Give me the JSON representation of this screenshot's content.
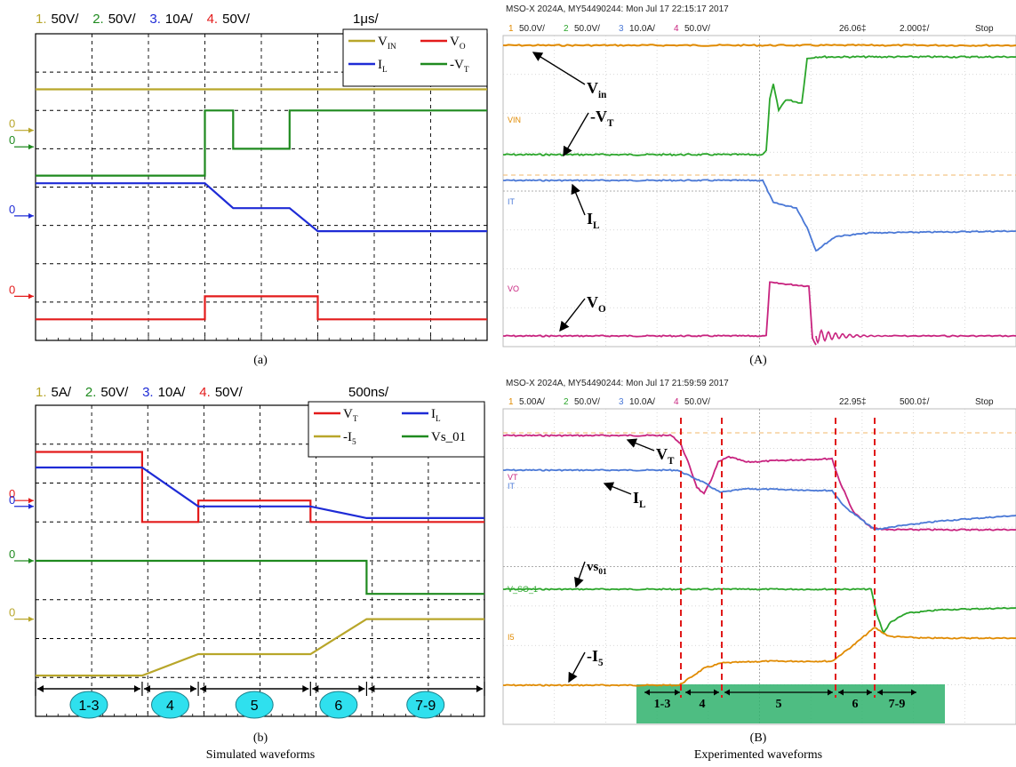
{
  "figure": {
    "caption_left": "Simulated waveforms",
    "caption_right": "Experimented waveforms",
    "panels": [
      {
        "id": "a",
        "label": "(a)",
        "type": "simulated",
        "channel_scales": [
          {
            "num": "1.",
            "text": "50V/",
            "color": "#b8a62a"
          },
          {
            "num": "2.",
            "text": "50V/",
            "color": "#1f8a1f"
          },
          {
            "num": "3.",
            "text": "10A/",
            "color": "#1e2bd6"
          },
          {
            "num": "4.",
            "text": "50V/",
            "color": "#e31b1b"
          }
        ],
        "time_scale": "1μs/",
        "legend": [
          {
            "main": "V",
            "sub": "IN",
            "prefix": "",
            "color": "#b8a62a"
          },
          {
            "main": "V",
            "sub": "O",
            "prefix": "",
            "color": "#e31b1b"
          },
          {
            "main": "I",
            "sub": "L",
            "prefix": "",
            "color": "#1e2bd6"
          },
          {
            "main": "V",
            "sub": "T",
            "prefix": "-",
            "color": "#1f8a1f"
          }
        ],
        "zero_markers": [
          {
            "label": "0",
            "color": "#b8a62a",
            "y_div": 2.52
          },
          {
            "label": "0",
            "color": "#1f8a1f",
            "y_div": 2.95
          },
          {
            "label": "0",
            "color": "#1e2bd6",
            "y_div": 4.75
          },
          {
            "label": "0",
            "color": "#e31b1b",
            "y_div": 6.85
          }
        ],
        "divisions": {
          "x": 8,
          "y": 8
        },
        "series": [
          {
            "name": "V_IN",
            "color": "#b8a62a",
            "points": [
              [
                0,
                1.45
              ],
              [
                8,
                1.45
              ]
            ]
          },
          {
            "name": "-V_T",
            "color": "#1f8a1f",
            "points": [
              [
                0,
                3.7
              ],
              [
                3,
                3.7
              ],
              [
                3,
                2.0
              ],
              [
                3.5,
                2.0
              ],
              [
                3.5,
                3.0
              ],
              [
                4.5,
                3.0
              ],
              [
                4.5,
                2.0
              ],
              [
                8,
                2.0
              ]
            ]
          },
          {
            "name": "I_L",
            "color": "#1e2bd6",
            "points": [
              [
                0,
                3.9
              ],
              [
                3,
                3.9
              ],
              [
                3.5,
                4.55
              ],
              [
                4.5,
                4.55
              ],
              [
                5,
                5.15
              ],
              [
                8,
                5.15
              ]
            ]
          },
          {
            "name": "V_O",
            "color": "#e31b1b",
            "points": [
              [
                0,
                7.45
              ],
              [
                3,
                7.45
              ],
              [
                3,
                6.85
              ],
              [
                5,
                6.85
              ],
              [
                5,
                7.45
              ],
              [
                8,
                7.45
              ]
            ]
          }
        ]
      },
      {
        "id": "b",
        "label": "(b)",
        "type": "simulated",
        "channel_scales": [
          {
            "num": "1.",
            "text": "5A/",
            "color": "#b8a62a"
          },
          {
            "num": "2.",
            "text": "50V/",
            "color": "#1f8a1f"
          },
          {
            "num": "3.",
            "text": "10A/",
            "color": "#1e2bd6"
          },
          {
            "num": "4.",
            "text": "50V/",
            "color": "#e31b1b"
          }
        ],
        "time_scale": "500ns/",
        "legend": [
          {
            "main": "V",
            "sub": "T",
            "prefix": "",
            "color": "#e31b1b"
          },
          {
            "main": "I",
            "sub": "L",
            "prefix": "",
            "color": "#1e2bd6"
          },
          {
            "main": "I",
            "sub": "5",
            "prefix": "-",
            "color": "#b8a62a"
          },
          {
            "main": "Vs_01",
            "sub": "",
            "prefix": "",
            "color": "#1f8a1f"
          }
        ],
        "zero_markers": [
          {
            "label": "0",
            "color": "#e31b1b",
            "y_div": 2.45
          },
          {
            "label": "0",
            "color": "#1e2bd6",
            "y_div": 2.6
          },
          {
            "label": "0",
            "color": "#1f8a1f",
            "y_div": 4.0
          },
          {
            "label": "0",
            "color": "#b8a62a",
            "y_div": 5.5
          }
        ],
        "divisions": {
          "x": 8,
          "y": 8
        },
        "series": [
          {
            "name": "V_T",
            "color": "#e31b1b",
            "points": [
              [
                0,
                1.2
              ],
              [
                1.9,
                1.2
              ],
              [
                1.9,
                3.0
              ],
              [
                2.9,
                3.0
              ],
              [
                2.9,
                2.45
              ],
              [
                4.9,
                2.45
              ],
              [
                4.9,
                3.0
              ],
              [
                8,
                3.0
              ]
            ]
          },
          {
            "name": "I_L",
            "color": "#1e2bd6",
            "points": [
              [
                0,
                1.6
              ],
              [
                1.9,
                1.6
              ],
              [
                2.9,
                2.6
              ],
              [
                4.9,
                2.6
              ],
              [
                5.9,
                2.9
              ],
              [
                8,
                2.9
              ]
            ]
          },
          {
            "name": "Vs_01",
            "color": "#1f8a1f",
            "points": [
              [
                0,
                4.0
              ],
              [
                5.9,
                4.0
              ],
              [
                5.9,
                4.85
              ],
              [
                8,
                4.85
              ]
            ]
          },
          {
            "name": "-I5",
            "color": "#b8a62a",
            "points": [
              [
                0,
                6.95
              ],
              [
                1.9,
                6.95
              ],
              [
                2.9,
                6.4
              ],
              [
                4.9,
                6.4
              ],
              [
                5.9,
                5.5
              ],
              [
                8,
                5.5
              ]
            ]
          }
        ],
        "intervals": [
          {
            "label": "1-3",
            "x0": 0,
            "x1": 1.9
          },
          {
            "label": "4",
            "x0": 1.9,
            "x1": 2.9
          },
          {
            "label": "5",
            "x0": 2.9,
            "x1": 4.9
          },
          {
            "label": "6",
            "x0": 4.9,
            "x1": 5.9
          },
          {
            "label": "7-9",
            "x0": 5.9,
            "x1": 8
          }
        ]
      },
      {
        "id": "A",
        "label": "(A)",
        "type": "experimental",
        "header": "MSO-X 2024A, MY54490244: Mon Jul 17 22:15:17 2017",
        "scale_bar": {
          "channels": [
            {
              "num": "1",
              "text": "50.0V/",
              "color": "#e08a00"
            },
            {
              "num": "2",
              "text": "50.0V/",
              "color": "#2aa52a"
            },
            {
              "num": "3",
              "text": "10.0A/",
              "color": "#4a78d6"
            },
            {
              "num": "4",
              "text": "50.0V/",
              "color": "#c8237f"
            }
          ],
          "delay": "26.06‡",
          "timebase": "2.000‡/",
          "state": "Stop"
        },
        "channel_tags": [
          {
            "text": "VIN",
            "color": "#e08a00"
          },
          {
            "text": "IT",
            "color": "#4a78d6"
          },
          {
            "text": "VO",
            "color": "#c8237f"
          }
        ],
        "annotations": [
          {
            "main": "V",
            "sub": "in"
          },
          {
            "main": "-V",
            "sub": "T"
          },
          {
            "main": "I",
            "sub": "L"
          },
          {
            "main": "V",
            "sub": "O"
          }
        ]
      },
      {
        "id": "B",
        "label": "(B)",
        "type": "experimental",
        "header": "MSO-X 2024A, MY54490244: Mon Jul 17 21:59:59 2017",
        "scale_bar": {
          "channels": [
            {
              "num": "1",
              "text": "5.00A/",
              "color": "#e08a00"
            },
            {
              "num": "2",
              "text": "50.0V/",
              "color": "#2aa52a"
            },
            {
              "num": "3",
              "text": "10.0A/",
              "color": "#4a78d6"
            },
            {
              "num": "4",
              "text": "50.0V/",
              "color": "#c8237f"
            }
          ],
          "delay": "22.95‡",
          "timebase": "500.0‡/",
          "state": "Stop"
        },
        "channel_tags": [
          {
            "text": "VT",
            "color": "#c8237f"
          },
          {
            "text": "IT",
            "color": "#4a78d6"
          },
          {
            "text": "V_SO_1",
            "color": "#2aa52a"
          },
          {
            "text": "I5",
            "color": "#e08a00"
          }
        ],
        "annotations": [
          {
            "main": "V",
            "sub": "T"
          },
          {
            "main": "I",
            "sub": "L"
          },
          {
            "main": "vs",
            "sub": "01"
          },
          {
            "main": "-I",
            "sub": "5"
          }
        ],
        "intervals": [
          "1-3",
          "4",
          "5",
          "6",
          "7-9"
        ]
      }
    ]
  },
  "chart_data": [
    {
      "type": "line",
      "title": "(a)",
      "time_per_div": "1μs/",
      "series": [
        {
          "name": "V_IN",
          "x": [
            0,
            8
          ],
          "y": [
            1.45,
            1.45
          ]
        },
        {
          "name": "V_O",
          "x": [
            0,
            3,
            3,
            5,
            5,
            8
          ],
          "y": [
            7.45,
            7.45,
            6.85,
            6.85,
            7.45,
            7.45
          ]
        },
        {
          "name": "I_L",
          "x": [
            0,
            3,
            3.5,
            4.5,
            5,
            8
          ],
          "y": [
            3.9,
            3.9,
            4.55,
            4.55,
            5.15,
            5.15
          ]
        },
        {
          "name": "-V_T",
          "x": [
            0,
            3,
            3,
            3.5,
            3.5,
            4.5,
            4.5,
            8
          ],
          "y": [
            3.7,
            3.7,
            2.0,
            2.0,
            3.0,
            3.0,
            2.0,
            2.0
          ]
        }
      ]
    },
    {
      "type": "line",
      "title": "(b)",
      "time_per_div": "500ns/",
      "series": [
        {
          "name": "V_T",
          "x": [
            0,
            1.9,
            1.9,
            2.9,
            2.9,
            4.9,
            4.9,
            8
          ],
          "y": [
            1.2,
            1.2,
            3.0,
            3.0,
            2.45,
            2.45,
            3.0,
            3.0
          ]
        },
        {
          "name": "I_L",
          "x": [
            0,
            1.9,
            2.9,
            4.9,
            5.9,
            8
          ],
          "y": [
            1.6,
            1.6,
            2.6,
            2.6,
            2.9,
            2.9
          ]
        },
        {
          "name": "-I5",
          "x": [
            0,
            1.9,
            2.9,
            4.9,
            5.9,
            8
          ],
          "y": [
            6.95,
            6.95,
            6.4,
            6.4,
            5.5,
            5.5
          ]
        },
        {
          "name": "Vs_01",
          "x": [
            0,
            5.9,
            5.9,
            8
          ],
          "y": [
            4.0,
            4.0,
            4.85,
            4.85
          ]
        }
      ]
    }
  ]
}
